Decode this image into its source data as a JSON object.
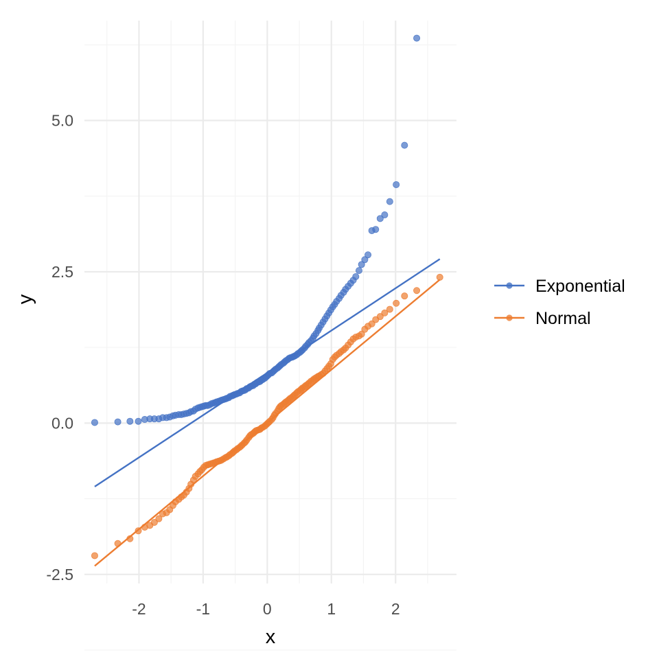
{
  "chart_data": {
    "type": "scatter",
    "title": "",
    "xlabel": "x",
    "ylabel": "y",
    "xlim": [
      -2.85,
      2.95
    ],
    "ylim": [
      -2.65,
      6.65
    ],
    "x_ticks": [
      -2,
      -1,
      0,
      1,
      2
    ],
    "x_tick_labels": [
      "-2",
      "-1",
      "0",
      "1",
      "2"
    ],
    "y_ticks": [
      -2.5,
      0,
      2.5,
      5
    ],
    "y_tick_labels": [
      "-2.5",
      "0.0",
      "2.5",
      "5.0"
    ],
    "grid": true,
    "legend_position": "right",
    "series": [
      {
        "name": "Exponential",
        "color": "#4472c4",
        "points": [
          [
            -2.69,
            0.01
          ],
          [
            -2.33,
            0.02
          ],
          [
            -2.14,
            0.03
          ],
          [
            -2.01,
            0.03
          ],
          [
            -1.91,
            0.06
          ],
          [
            -1.83,
            0.07
          ],
          [
            -1.76,
            0.07
          ],
          [
            -1.69,
            0.07
          ],
          [
            -1.63,
            0.09
          ],
          [
            -1.57,
            0.09
          ],
          [
            -1.52,
            0.1
          ],
          [
            -1.47,
            0.12
          ],
          [
            -1.43,
            0.13
          ],
          [
            -1.38,
            0.14
          ],
          [
            -1.34,
            0.14
          ],
          [
            -1.3,
            0.15
          ],
          [
            -1.26,
            0.16
          ],
          [
            -1.22,
            0.17
          ],
          [
            -1.19,
            0.19
          ],
          [
            -1.15,
            0.2
          ],
          [
            -1.12,
            0.23
          ],
          [
            -1.08,
            0.25
          ],
          [
            -1.05,
            0.26
          ],
          [
            -1.02,
            0.27
          ],
          [
            -0.99,
            0.28
          ],
          [
            -0.96,
            0.29
          ],
          [
            -0.93,
            0.29
          ],
          [
            -0.9,
            0.3
          ],
          [
            -0.87,
            0.32
          ],
          [
            -0.84,
            0.33
          ],
          [
            -0.81,
            0.34
          ],
          [
            -0.79,
            0.35
          ],
          [
            -0.76,
            0.36
          ],
          [
            -0.73,
            0.37
          ],
          [
            -0.71,
            0.38
          ],
          [
            -0.68,
            0.39
          ],
          [
            -0.65,
            0.4
          ],
          [
            -0.63,
            0.41
          ],
          [
            -0.6,
            0.42
          ],
          [
            -0.58,
            0.44
          ],
          [
            -0.55,
            0.45
          ],
          [
            -0.53,
            0.46
          ],
          [
            -0.51,
            0.47
          ],
          [
            -0.48,
            0.48
          ],
          [
            -0.46,
            0.49
          ],
          [
            -0.43,
            0.5
          ],
          [
            -0.41,
            0.52
          ],
          [
            -0.39,
            0.53
          ],
          [
            -0.36,
            0.54
          ],
          [
            -0.34,
            0.55
          ],
          [
            -0.32,
            0.57
          ],
          [
            -0.29,
            0.58
          ],
          [
            -0.27,
            0.6
          ],
          [
            -0.25,
            0.61
          ],
          [
            -0.22,
            0.62
          ],
          [
            -0.2,
            0.64
          ],
          [
            -0.18,
            0.65
          ],
          [
            -0.16,
            0.67
          ],
          [
            -0.13,
            0.68
          ],
          [
            -0.11,
            0.69
          ],
          [
            -0.09,
            0.71
          ],
          [
            -0.07,
            0.72
          ],
          [
            -0.04,
            0.74
          ],
          [
            -0.02,
            0.76
          ],
          [
            0.0,
            0.78
          ],
          [
            0.02,
            0.8
          ],
          [
            0.04,
            0.82
          ],
          [
            0.07,
            0.83
          ],
          [
            0.09,
            0.85
          ],
          [
            0.11,
            0.87
          ],
          [
            0.13,
            0.89
          ],
          [
            0.16,
            0.91
          ],
          [
            0.18,
            0.93
          ],
          [
            0.2,
            0.95
          ],
          [
            0.22,
            0.97
          ],
          [
            0.25,
            0.99
          ],
          [
            0.27,
            1.01
          ],
          [
            0.29,
            1.03
          ],
          [
            0.32,
            1.05
          ],
          [
            0.34,
            1.07
          ],
          [
            0.36,
            1.08
          ],
          [
            0.39,
            1.09
          ],
          [
            0.41,
            1.1
          ],
          [
            0.43,
            1.11
          ],
          [
            0.46,
            1.13
          ],
          [
            0.48,
            1.15
          ],
          [
            0.51,
            1.17
          ],
          [
            0.53,
            1.19
          ],
          [
            0.55,
            1.21
          ],
          [
            0.58,
            1.24
          ],
          [
            0.6,
            1.27
          ],
          [
            0.63,
            1.3
          ],
          [
            0.65,
            1.33
          ],
          [
            0.68,
            1.36
          ],
          [
            0.71,
            1.4
          ],
          [
            0.73,
            1.44
          ],
          [
            0.76,
            1.48
          ],
          [
            0.79,
            1.53
          ],
          [
            0.81,
            1.57
          ],
          [
            0.84,
            1.62
          ],
          [
            0.87,
            1.67
          ],
          [
            0.9,
            1.72
          ],
          [
            0.93,
            1.77
          ],
          [
            0.96,
            1.82
          ],
          [
            0.99,
            1.87
          ],
          [
            1.02,
            1.92
          ],
          [
            1.05,
            1.96
          ],
          [
            1.08,
            2.01
          ],
          [
            1.12,
            2.06
          ],
          [
            1.15,
            2.11
          ],
          [
            1.19,
            2.16
          ],
          [
            1.22,
            2.21
          ],
          [
            1.26,
            2.26
          ],
          [
            1.3,
            2.31
          ],
          [
            1.34,
            2.36
          ],
          [
            1.38,
            2.42
          ],
          [
            1.43,
            2.52
          ],
          [
            1.47,
            2.62
          ],
          [
            1.52,
            2.7
          ],
          [
            1.57,
            2.78
          ],
          [
            1.63,
            3.18
          ],
          [
            1.69,
            3.2
          ],
          [
            1.76,
            3.38
          ],
          [
            1.83,
            3.44
          ],
          [
            1.91,
            3.66
          ],
          [
            2.01,
            3.94
          ],
          [
            2.14,
            4.59
          ],
          [
            2.33,
            6.36
          ]
        ],
        "fit": {
          "x": [
            -2.69,
            2.69
          ],
          "y": [
            -1.05,
            2.71
          ]
        }
      },
      {
        "name": "Normal",
        "color": "#ed7d31",
        "points": [
          [
            -2.69,
            -2.19
          ],
          [
            -2.33,
            -1.99
          ],
          [
            -2.14,
            -1.91
          ],
          [
            -2.01,
            -1.78
          ],
          [
            -1.91,
            -1.72
          ],
          [
            -1.83,
            -1.69
          ],
          [
            -1.76,
            -1.64
          ],
          [
            -1.69,
            -1.58
          ],
          [
            -1.63,
            -1.5
          ],
          [
            -1.57,
            -1.48
          ],
          [
            -1.52,
            -1.43
          ],
          [
            -1.47,
            -1.36
          ],
          [
            -1.43,
            -1.3
          ],
          [
            -1.38,
            -1.26
          ],
          [
            -1.34,
            -1.22
          ],
          [
            -1.3,
            -1.19
          ],
          [
            -1.26,
            -1.14
          ],
          [
            -1.22,
            -1.08
          ],
          [
            -1.19,
            -1.01
          ],
          [
            -1.15,
            -0.94
          ],
          [
            -1.12,
            -0.88
          ],
          [
            -1.08,
            -0.84
          ],
          [
            -1.05,
            -0.8
          ],
          [
            -1.02,
            -0.77
          ],
          [
            -0.99,
            -0.73
          ],
          [
            -0.96,
            -0.7
          ],
          [
            -0.93,
            -0.69
          ],
          [
            -0.9,
            -0.68
          ],
          [
            -0.87,
            -0.67
          ],
          [
            -0.84,
            -0.66
          ],
          [
            -0.81,
            -0.65
          ],
          [
            -0.79,
            -0.64
          ],
          [
            -0.76,
            -0.63
          ],
          [
            -0.73,
            -0.62
          ],
          [
            -0.71,
            -0.61
          ],
          [
            -0.68,
            -0.59
          ],
          [
            -0.65,
            -0.57
          ],
          [
            -0.63,
            -0.56
          ],
          [
            -0.6,
            -0.54
          ],
          [
            -0.58,
            -0.52
          ],
          [
            -0.55,
            -0.5
          ],
          [
            -0.53,
            -0.48
          ],
          [
            -0.51,
            -0.46
          ],
          [
            -0.48,
            -0.44
          ],
          [
            -0.46,
            -0.42
          ],
          [
            -0.43,
            -0.4
          ],
          [
            -0.41,
            -0.38
          ],
          [
            -0.39,
            -0.36
          ],
          [
            -0.36,
            -0.33
          ],
          [
            -0.34,
            -0.31
          ],
          [
            -0.32,
            -0.28
          ],
          [
            -0.29,
            -0.24
          ],
          [
            -0.27,
            -0.21
          ],
          [
            -0.25,
            -0.19
          ],
          [
            -0.22,
            -0.17
          ],
          [
            -0.2,
            -0.15
          ],
          [
            -0.18,
            -0.13
          ],
          [
            -0.16,
            -0.12
          ],
          [
            -0.13,
            -0.11
          ],
          [
            -0.11,
            -0.1
          ],
          [
            -0.09,
            -0.08
          ],
          [
            -0.07,
            -0.07
          ],
          [
            -0.04,
            -0.05
          ],
          [
            -0.02,
            -0.03
          ],
          [
            0.0,
            -0.01
          ],
          [
            0.02,
            0.01
          ],
          [
            0.04,
            0.03
          ],
          [
            0.07,
            0.06
          ],
          [
            0.09,
            0.09
          ],
          [
            0.11,
            0.13
          ],
          [
            0.13,
            0.16
          ],
          [
            0.16,
            0.2
          ],
          [
            0.18,
            0.24
          ],
          [
            0.2,
            0.27
          ],
          [
            0.22,
            0.29
          ],
          [
            0.25,
            0.31
          ],
          [
            0.27,
            0.33
          ],
          [
            0.29,
            0.35
          ],
          [
            0.32,
            0.37
          ],
          [
            0.34,
            0.39
          ],
          [
            0.36,
            0.41
          ],
          [
            0.39,
            0.43
          ],
          [
            0.41,
            0.45
          ],
          [
            0.43,
            0.47
          ],
          [
            0.46,
            0.5
          ],
          [
            0.48,
            0.52
          ],
          [
            0.51,
            0.54
          ],
          [
            0.53,
            0.56
          ],
          [
            0.55,
            0.58
          ],
          [
            0.58,
            0.6
          ],
          [
            0.6,
            0.62
          ],
          [
            0.63,
            0.64
          ],
          [
            0.65,
            0.66
          ],
          [
            0.68,
            0.69
          ],
          [
            0.71,
            0.71
          ],
          [
            0.73,
            0.73
          ],
          [
            0.76,
            0.75
          ],
          [
            0.79,
            0.77
          ],
          [
            0.81,
            0.78
          ],
          [
            0.84,
            0.8
          ],
          [
            0.87,
            0.82
          ],
          [
            0.9,
            0.86
          ],
          [
            0.93,
            0.9
          ],
          [
            0.96,
            0.94
          ],
          [
            0.99,
            0.98
          ],
          [
            1.02,
            1.05
          ],
          [
            1.05,
            1.09
          ],
          [
            1.08,
            1.12
          ],
          [
            1.12,
            1.15
          ],
          [
            1.15,
            1.18
          ],
          [
            1.19,
            1.21
          ],
          [
            1.22,
            1.24
          ],
          [
            1.26,
            1.29
          ],
          [
            1.3,
            1.34
          ],
          [
            1.34,
            1.39
          ],
          [
            1.38,
            1.42
          ],
          [
            1.43,
            1.44
          ],
          [
            1.47,
            1.47
          ],
          [
            1.52,
            1.55
          ],
          [
            1.57,
            1.6
          ],
          [
            1.63,
            1.64
          ],
          [
            1.69,
            1.71
          ],
          [
            1.76,
            1.76
          ],
          [
            1.83,
            1.82
          ],
          [
            1.91,
            1.88
          ],
          [
            2.01,
            1.98
          ],
          [
            2.14,
            2.1
          ],
          [
            2.33,
            2.19
          ],
          [
            2.69,
            2.41
          ]
        ],
        "fit": {
          "x": [
            -2.69,
            2.69
          ],
          "y": [
            -2.36,
            2.37
          ]
        }
      }
    ]
  }
}
